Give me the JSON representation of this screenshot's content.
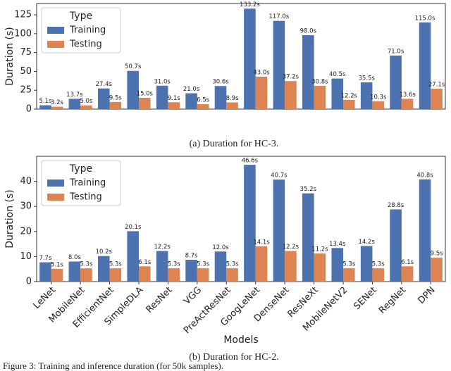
{
  "chart_data": [
    {
      "type": "bar",
      "caption": "(a) Duration for HC-3.",
      "ylabel": "Duration (s)",
      "categories": [
        null,
        null,
        null,
        null,
        null,
        null,
        null,
        null,
        null,
        null,
        null,
        null,
        null,
        null
      ],
      "series": [
        {
          "name": "Training",
          "color": "#4c72b0",
          "values": [
            5.1,
            13.7,
            27.4,
            50.7,
            31.0,
            21.0,
            30.6,
            133.2,
            117.0,
            98.0,
            40.5,
            35.5,
            71.0,
            115.0
          ],
          "value_labels": [
            "5.1s",
            "13.7s",
            "27.4s",
            "50.7s",
            "31.0s",
            "21.0s",
            "30.6s",
            "133.2s",
            "117.0s",
            "98.0s",
            "40.5s",
            "35.5s",
            "71.0s",
            "115.0s"
          ]
        },
        {
          "name": "Testing",
          "color": "#dd8452",
          "values": [
            3.2,
            5.0,
            9.5,
            15.0,
            9.1,
            6.5,
            8.9,
            43.0,
            37.2,
            30.8,
            12.2,
            10.3,
            13.6,
            27.1
          ],
          "value_labels": [
            "3.2s",
            "5.0s",
            "9.5s",
            "15.0s",
            "9.1s",
            "6.5s",
            "8.9s",
            "43.0s",
            "37.2s",
            "30.8s",
            "12.2s",
            "10.3s",
            "13.6s",
            "27.1s"
          ]
        }
      ],
      "ylim": [
        0,
        140
      ],
      "yticks": [
        0,
        25,
        50,
        75,
        100,
        125
      ],
      "legend_title": "Type",
      "legend": "upper left"
    },
    {
      "type": "bar",
      "caption": "(b) Duration for HC-2.",
      "ylabel": "Duration (s)",
      "xlabel": "Models",
      "categories": [
        "LeNet",
        "MobileNet",
        "EfficientNet",
        "SimpleDLA",
        "ResNet",
        "VGG",
        "PreActResNet",
        "GoogLeNet",
        "DenseNet",
        "ResNeXt",
        "MobileNetV2",
        "SENet",
        "RegNet",
        "DPN"
      ],
      "series": [
        {
          "name": "Training",
          "color": "#4c72b0",
          "values": [
            7.7,
            8.0,
            10.2,
            20.1,
            12.2,
            8.7,
            12.0,
            46.6,
            40.7,
            35.2,
            13.4,
            14.2,
            28.8,
            40.8
          ],
          "value_labels": [
            "7.7s",
            "8.0s",
            "10.2s",
            "20.1s",
            "12.2s",
            "8.7s",
            "12.0s",
            "46.6s",
            "40.7s",
            "35.2s",
            "13.4s",
            "14.2s",
            "28.8s",
            "40.8s"
          ]
        },
        {
          "name": "Testing",
          "color": "#dd8452",
          "values": [
            5.1,
            5.3,
            5.3,
            6.1,
            5.3,
            5.3,
            5.3,
            14.1,
            12.2,
            11.2,
            5.3,
            5.3,
            6.1,
            9.5
          ],
          "value_labels": [
            "5.1s",
            "5.3s",
            "5.3s",
            "6.1s",
            "5.3s",
            "5.3s",
            "5.3s",
            "14.1s",
            "12.2s",
            "11.2s",
            "5.3s",
            "5.3s",
            "6.1s",
            "9.5s"
          ]
        }
      ],
      "ylim": [
        0,
        50
      ],
      "yticks": [
        0,
        10,
        20,
        30,
        40
      ],
      "legend_title": "Type",
      "legend": "upper left"
    }
  ],
  "figure_caption": "Figure 3: Training and inference duration (for 50k samples)."
}
